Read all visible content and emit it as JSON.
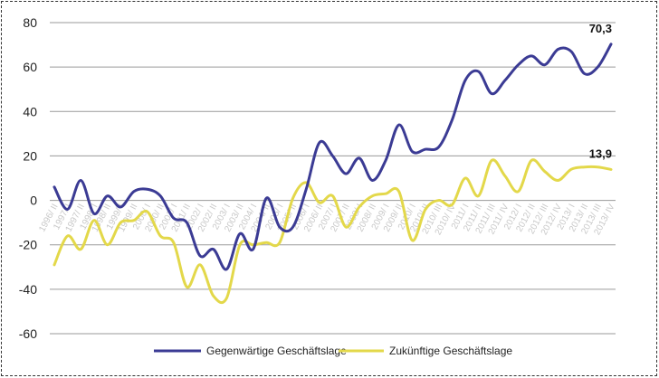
{
  "chart_data": {
    "type": "line",
    "title": "",
    "xlabel": "",
    "ylabel": "",
    "ylim": [
      -60,
      80
    ],
    "yticks": [
      80,
      60,
      40,
      20,
      0,
      -20,
      -40,
      -60
    ],
    "grid": "horizontal",
    "legend_position": "bottom",
    "x_tick_labels": [
      "1996/ II",
      "1997/ I",
      "1997/ II",
      "1998/ I",
      "1998/ II",
      "1999/ I",
      "1999/ II",
      "2000/ I",
      "2000/ II",
      "2001/ I",
      "2001/ II",
      "2002/ I",
      "2002/ II",
      "2003/ I",
      "2003/ II",
      "2004/ I",
      "2004/ II",
      "2005/ I",
      "2005/ II",
      "2006/ I",
      "2006/ II",
      "2007/ I",
      "2007/ II",
      "2008/ I",
      "2008/ II",
      "2009/ I",
      "2009/ II",
      "2010/ I",
      "2010/ II",
      "2010/ III",
      "2010/ IV",
      "2011/ I",
      "2011/ II",
      "2011/ III",
      "2011/ IV",
      "2012/ I",
      "2012/ II",
      "2012/ III",
      "2012/ IV",
      "2013/ I",
      "2013/ II",
      "2013/ III",
      "2013/ IV"
    ],
    "series": [
      {
        "name": "Gegenwärtige Geschäftslage",
        "color": "#3b3b94",
        "end_label": "70,3",
        "values": [
          6,
          -4,
          9,
          -6,
          2,
          -3,
          4,
          5,
          2,
          -8,
          -10,
          -25,
          -22,
          -31,
          -15,
          -22,
          1,
          -12,
          -12,
          5,
          26,
          20,
          12,
          19,
          9,
          18,
          34,
          22,
          23,
          24,
          36,
          54,
          58,
          48,
          54,
          61,
          65,
          61,
          68,
          67,
          57,
          60,
          70.3
        ]
      },
      {
        "name": "Zukünftige Geschäftslage",
        "color": "#e3d84a",
        "end_label": "13,9",
        "values": [
          -29,
          -16,
          -22,
          -9,
          -20,
          -10,
          -9,
          -5,
          -16,
          -19,
          -39,
          -29,
          -43,
          -44,
          -20,
          -20,
          -19,
          -19,
          1,
          8,
          -1,
          2,
          -12,
          -3,
          2,
          3,
          4,
          -18,
          -4,
          0,
          -2,
          10,
          2,
          18,
          11,
          4,
          18,
          13,
          9,
          14,
          15,
          15,
          13.9
        ]
      }
    ]
  }
}
